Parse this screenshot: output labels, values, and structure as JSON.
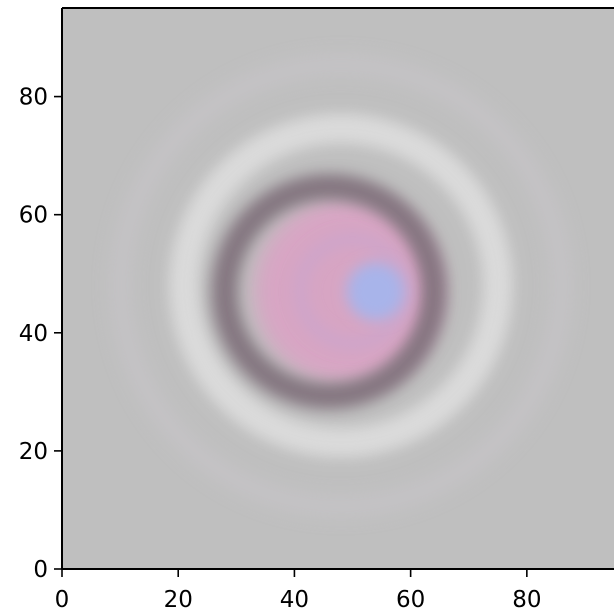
{
  "chart_data": {
    "type": "heatmap",
    "title": "",
    "xlabel": "",
    "ylabel": "",
    "xlim": [
      0,
      95
    ],
    "ylim": [
      0,
      95
    ],
    "x_ticks": [
      0,
      20,
      40,
      60,
      80
    ],
    "y_ticks": [
      0,
      20,
      40,
      60,
      80
    ],
    "x_tick_labels": [
      "0",
      "20",
      "40",
      "60",
      "80"
    ],
    "y_tick_labels": [
      "0",
      "20",
      "40",
      "60",
      "80"
    ],
    "grid": false,
    "colors": {
      "background": "#bfbfbf",
      "dark_ring": "#7f6f7a",
      "pink_core": "#d9a4c4",
      "blue_center": "#a8b4ea",
      "light_ring": "#dcdcdc"
    },
    "pattern": {
      "description_shape": "concentric interference rings",
      "center": [
        54,
        47
      ],
      "dark_ring_center": [
        46,
        47
      ],
      "dark_ring_radius": 18,
      "light_ring_center": [
        48,
        48
      ],
      "light_ring_radius": 27,
      "outer_faint_ring_radius": 38
    }
  }
}
